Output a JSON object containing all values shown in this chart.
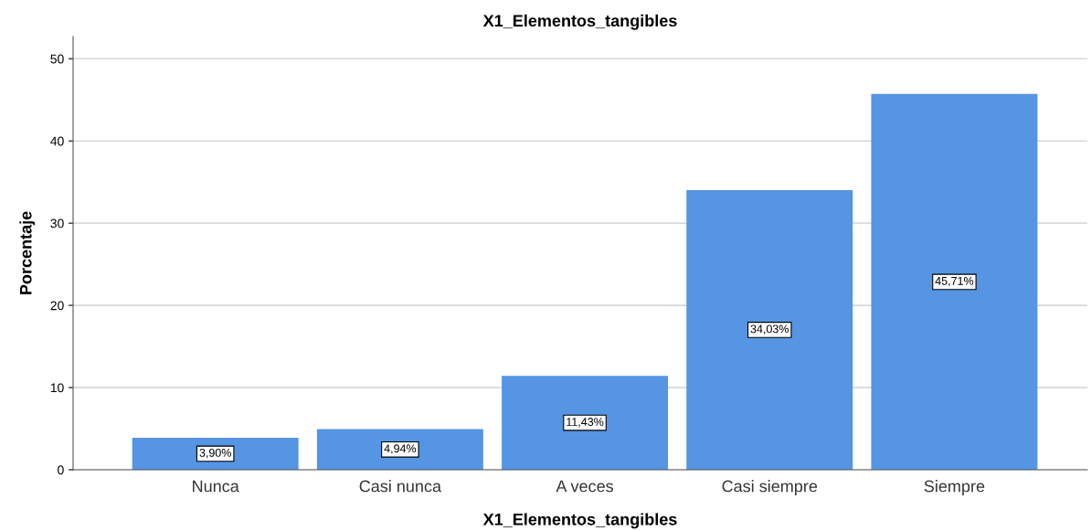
{
  "chart_data": {
    "type": "bar",
    "title": "X1_Elementos_tangibles",
    "xlabel": "X1_Elementos_tangibles",
    "ylabel": "Porcentaje",
    "categories": [
      "Nunca",
      "Casi nunca",
      "A veces",
      "Casi siempre",
      "Siempre"
    ],
    "values": [
      3.9,
      4.94,
      11.43,
      34.03,
      45.71
    ],
    "value_labels": [
      "3,90%",
      "4,94%",
      "11,43%",
      "34,03%",
      "45,71%"
    ],
    "color": "#5595e3",
    "ylim": [
      0,
      52.7
    ],
    "yticks": [
      0,
      10,
      20,
      30,
      40,
      50
    ],
    "grid": "y"
  }
}
